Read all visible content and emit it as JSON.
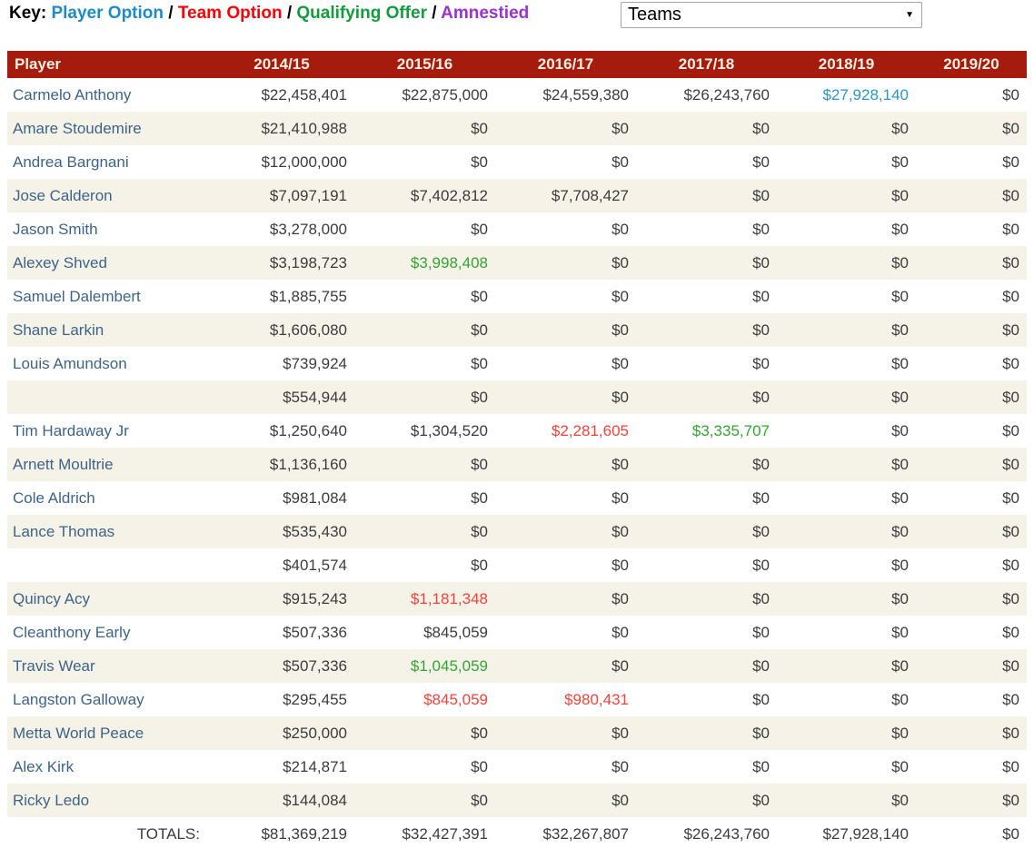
{
  "legend": {
    "label": "Key:",
    "separator": "/",
    "items": [
      {
        "label": "Player Option",
        "color": "#1e8bc3"
      },
      {
        "label": "Team Option",
        "color": "#fb0007"
      },
      {
        "label": "Qualifying Offer",
        "color": "#149c3c"
      },
      {
        "label": "Amnestied",
        "color": "#9933cc"
      }
    ]
  },
  "teams_dropdown": {
    "value": "Teams"
  },
  "colors": {
    "header_bg": "#a51c0e",
    "header_text": "#f8f0e1",
    "row_alt_bg": "#f5f2e8",
    "player_link": "#3d6488",
    "value_text": "#3c3c3c",
    "player_option": "#2e95c6",
    "team_option": "#f5423b",
    "qualifying_offer": "#33a532"
  },
  "table": {
    "columns": [
      "Player",
      "2014/15",
      "2015/16",
      "2016/17",
      "2017/18",
      "2018/19",
      "2019/20"
    ],
    "tag_legend": {
      "po": "player-option",
      "to": "team-option",
      "qo": "qualifying-offer"
    },
    "rows": [
      {
        "player": "Carmelo Anthony",
        "values": [
          "$22,458,401",
          "$22,875,000",
          "$24,559,380",
          "$26,243,760",
          "$27,928,140",
          "$0"
        ],
        "tags": {
          "4": "po"
        }
      },
      {
        "player": "Amare Stoudemire",
        "values": [
          "$21,410,988",
          "$0",
          "$0",
          "$0",
          "$0",
          "$0"
        ],
        "tags": {}
      },
      {
        "player": "Andrea Bargnani",
        "values": [
          "$12,000,000",
          "$0",
          "$0",
          "$0",
          "$0",
          "$0"
        ],
        "tags": {}
      },
      {
        "player": "Jose Calderon",
        "values": [
          "$7,097,191",
          "$7,402,812",
          "$7,708,427",
          "$0",
          "$0",
          "$0"
        ],
        "tags": {}
      },
      {
        "player": "Jason Smith",
        "values": [
          "$3,278,000",
          "$0",
          "$0",
          "$0",
          "$0",
          "$0"
        ],
        "tags": {}
      },
      {
        "player": "Alexey Shved",
        "values": [
          "$3,198,723",
          "$3,998,408",
          "$0",
          "$0",
          "$0",
          "$0"
        ],
        "tags": {
          "1": "qo"
        }
      },
      {
        "player": "Samuel Dalembert",
        "values": [
          "$1,885,755",
          "$0",
          "$0",
          "$0",
          "$0",
          "$0"
        ],
        "tags": {}
      },
      {
        "player": "Shane Larkin",
        "values": [
          "$1,606,080",
          "$0",
          "$0",
          "$0",
          "$0",
          "$0"
        ],
        "tags": {}
      },
      {
        "player": "Louis Amundson",
        "values": [
          "$739,924",
          "$0",
          "$0",
          "$0",
          "$0",
          "$0"
        ],
        "tags": {}
      },
      {
        "player": "",
        "values": [
          "$554,944",
          "$0",
          "$0",
          "$0",
          "$0",
          "$0"
        ],
        "tags": {}
      },
      {
        "player": "Tim Hardaway Jr",
        "values": [
          "$1,250,640",
          "$1,304,520",
          "$2,281,605",
          "$3,335,707",
          "$0",
          "$0"
        ],
        "tags": {
          "2": "to",
          "3": "qo"
        }
      },
      {
        "player": "Arnett Moultrie",
        "values": [
          "$1,136,160",
          "$0",
          "$0",
          "$0",
          "$0",
          "$0"
        ],
        "tags": {}
      },
      {
        "player": "Cole Aldrich",
        "values": [
          "$981,084",
          "$0",
          "$0",
          "$0",
          "$0",
          "$0"
        ],
        "tags": {}
      },
      {
        "player": "Lance Thomas",
        "values": [
          "$535,430",
          "$0",
          "$0",
          "$0",
          "$0",
          "$0"
        ],
        "tags": {}
      },
      {
        "player": "",
        "values": [
          "$401,574",
          "$0",
          "$0",
          "$0",
          "$0",
          "$0"
        ],
        "tags": {}
      },
      {
        "player": "Quincy Acy",
        "values": [
          "$915,243",
          "$1,181,348",
          "$0",
          "$0",
          "$0",
          "$0"
        ],
        "tags": {
          "1": "to"
        }
      },
      {
        "player": "Cleanthony Early",
        "values": [
          "$507,336",
          "$845,059",
          "$0",
          "$0",
          "$0",
          "$0"
        ],
        "tags": {}
      },
      {
        "player": "Travis Wear",
        "values": [
          "$507,336",
          "$1,045,059",
          "$0",
          "$0",
          "$0",
          "$0"
        ],
        "tags": {
          "1": "qo"
        }
      },
      {
        "player": "Langston Galloway",
        "values": [
          "$295,455",
          "$845,059",
          "$980,431",
          "$0",
          "$0",
          "$0"
        ],
        "tags": {
          "1": "to",
          "2": "to"
        }
      },
      {
        "player": "Metta World Peace",
        "values": [
          "$250,000",
          "$0",
          "$0",
          "$0",
          "$0",
          "$0"
        ],
        "tags": {}
      },
      {
        "player": "Alex Kirk",
        "values": [
          "$214,871",
          "$0",
          "$0",
          "$0",
          "$0",
          "$0"
        ],
        "tags": {}
      },
      {
        "player": "Ricky Ledo",
        "values": [
          "$144,084",
          "$0",
          "$0",
          "$0",
          "$0",
          "$0"
        ],
        "tags": {}
      }
    ],
    "totals": {
      "label": "TOTALS:",
      "values": [
        "$81,369,219",
        "$32,427,391",
        "$32,267,807",
        "$26,243,760",
        "$27,928,140",
        "$0"
      ]
    }
  }
}
